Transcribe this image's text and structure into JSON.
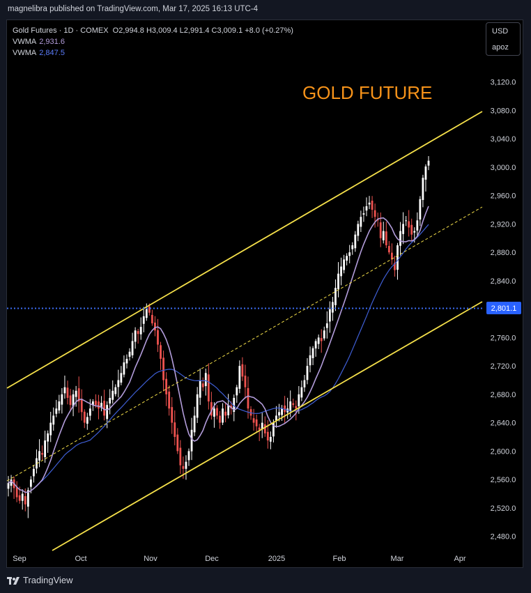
{
  "header": {
    "published": "magnelibra published on TradingView.com, Mar 17, 2025 16:13 UTC-4"
  },
  "legend": {
    "title": "Gold Futures · 1D · COMEX",
    "ohlc": "O2,994.8  H3,009.4  L2,991.4  C3,009.1  +8.0 (+0.27%)",
    "vwma1_label": "VWMA",
    "vwma1_value": "2,931.6",
    "vwma2_label": "VWMA",
    "vwma2_value": "2,847.5"
  },
  "currency_box": {
    "currency": "USD",
    "unit": "apoz"
  },
  "annotation": {
    "text": "GOLD FUTURE",
    "color": "#f7931a"
  },
  "price_label": {
    "value": "2,801.1",
    "color": "#2962ff"
  },
  "footer": {
    "brand": "TradingView"
  },
  "colors": {
    "up": "#ffffff",
    "down": "#ef5350",
    "channel": "#f5e04a",
    "vwma_fast": "#b39ddb",
    "vwma_slow": "#3f5fd6",
    "level_line": "#3d6ef5"
  },
  "chart_data": {
    "type": "candlestick",
    "title": "",
    "y_ticks": [
      "3,120.0",
      "3,080.0",
      "3,040.0",
      "3,000.0",
      "2,960.0",
      "2,920.0",
      "2,880.0",
      "2,840.0",
      "2,801.1",
      "2,760.0",
      "2,720.0",
      "2,680.0",
      "2,640.0",
      "2,600.0",
      "2,560.0",
      "2,520.0",
      "2,480.0"
    ],
    "x_ticks": [
      "Sep",
      "Oct",
      "Nov",
      "Dec",
      "2025",
      "Feb",
      "Mar",
      "Apr"
    ],
    "ylim": [
      2460,
      3155
    ],
    "horizontal_level": 2801.1,
    "closes": [
      2555,
      2560,
      2548,
      2535,
      2530,
      2540,
      2525,
      2545,
      2560,
      2575,
      2590,
      2600,
      2595,
      2615,
      2625,
      2640,
      2650,
      2660,
      2670,
      2680,
      2690,
      2675,
      2665,
      2680,
      2685,
      2670,
      2655,
      2640,
      2648,
      2660,
      2670,
      2665,
      2660,
      2668,
      2650,
      2665,
      2675,
      2685,
      2690,
      2700,
      2710,
      2725,
      2730,
      2740,
      2755,
      2770,
      2765,
      2775,
      2790,
      2800,
      2795,
      2780,
      2770,
      2750,
      2730,
      2700,
      2680,
      2660,
      2640,
      2620,
      2600,
      2580,
      2575,
      2585,
      2600,
      2630,
      2650,
      2680,
      2700,
      2690,
      2710,
      2670,
      2650,
      2660,
      2650,
      2640,
      2660,
      2650,
      2665,
      2660,
      2675,
      2690,
      2720,
      2705,
      2690,
      2660,
      2650,
      2640,
      2635,
      2630,
      2640,
      2625,
      2615,
      2620,
      2640,
      2650,
      2655,
      2660,
      2655,
      2660,
      2670,
      2665,
      2660,
      2680,
      2690,
      2700,
      2720,
      2735,
      2745,
      2755,
      2760,
      2755,
      2770,
      2780,
      2800,
      2810,
      2830,
      2850,
      2860,
      2870,
      2875,
      2880,
      2890,
      2905,
      2920,
      2930,
      2935,
      2945,
      2950,
      2940,
      2930,
      2925,
      2900,
      2910,
      2890,
      2880,
      2870,
      2855,
      2890,
      2910,
      2920,
      2925,
      2915,
      2905,
      2910,
      2925,
      2955,
      2985,
      3001,
      3009.1
    ],
    "vwma_fast": {
      "label": "VWMA",
      "value": "2,931.6"
    },
    "vwma_slow": {
      "label": "VWMA",
      "value": "2,847.5"
    }
  }
}
